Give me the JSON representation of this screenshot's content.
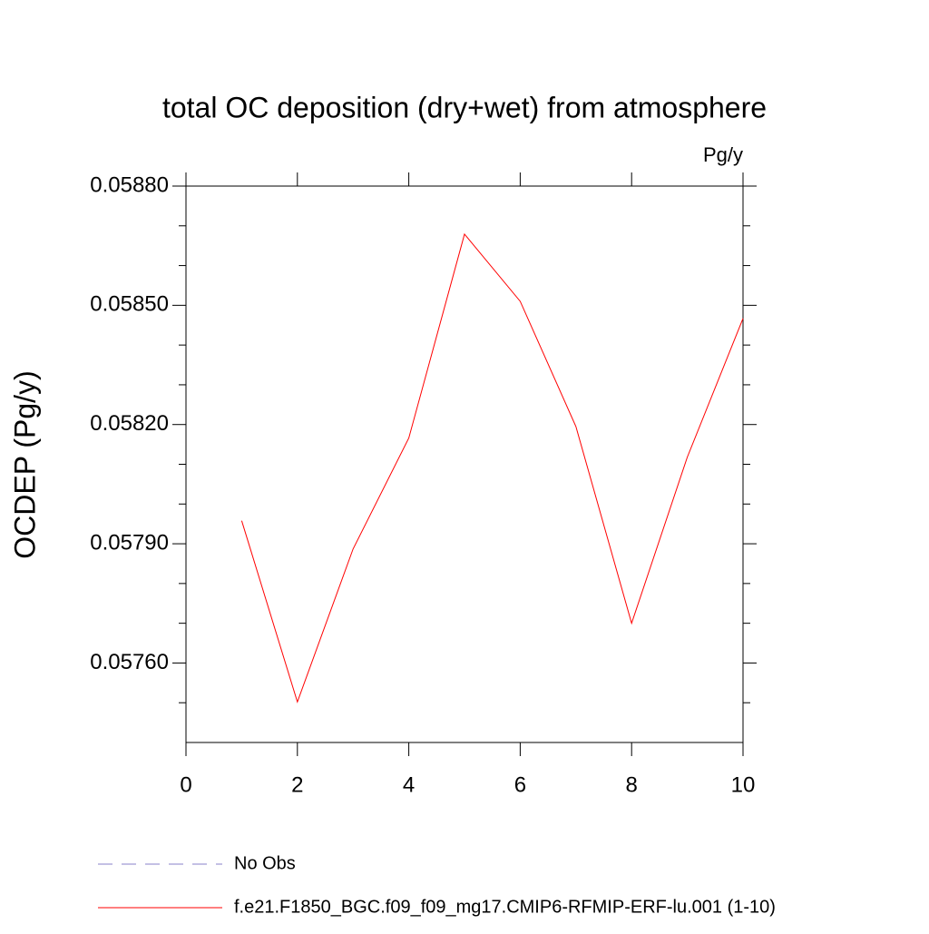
{
  "chart_data": {
    "type": "line",
    "title": "total OC deposition (dry+wet) from atmosphere",
    "units": "Pg/y",
    "ylabel": "OCDEP  (Pg/y)",
    "x": [
      1,
      2,
      3,
      4,
      5,
      6,
      7,
      8,
      9,
      10
    ],
    "series": [
      {
        "name": "f.e21.F1850_BGC.f09_f09_mg17.CMIP6-RFMIP-ERF-lu.001 (1-10)",
        "color": "#ff0000",
        "values": [
          0.057958,
          0.057502,
          0.057887,
          0.058166,
          0.058679,
          0.05851,
          0.058195,
          0.0577,
          0.058118,
          0.058467
        ]
      }
    ],
    "legend_extra": [
      {
        "name": "No Obs",
        "color": "#8a80c8",
        "dash": "16,10"
      }
    ],
    "xlim": [
      0,
      10
    ],
    "xticks": [
      0,
      2,
      4,
      6,
      8,
      10
    ],
    "ylim": [
      0.0574,
      0.0588
    ],
    "yticks": [
      {
        "value": 0.0576,
        "label": "0.05760"
      },
      {
        "value": 0.0579,
        "label": "0.05790"
      },
      {
        "value": 0.0582,
        "label": "0.05820"
      },
      {
        "value": 0.0585,
        "label": "0.05850"
      },
      {
        "value": 0.0588,
        "label": "0.05880"
      }
    ],
    "yminorticks": [
      0.0575,
      0.0577,
      0.0578,
      0.058,
      0.0581,
      0.0583,
      0.0584,
      0.0586,
      0.0587
    ]
  }
}
